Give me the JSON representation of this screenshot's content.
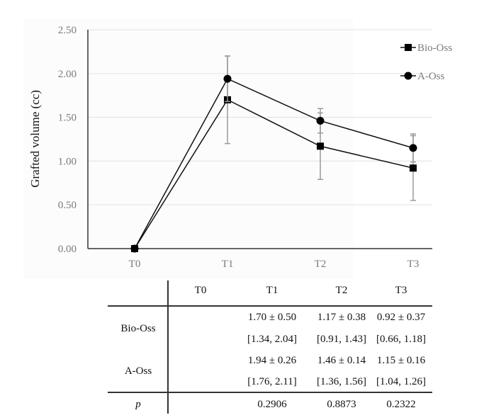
{
  "chart_data": {
    "type": "line",
    "title": "",
    "xlabel": "",
    "ylabel": "Grafted volume (cc)",
    "categories": [
      "T0",
      "T1",
      "T2",
      "T3"
    ],
    "ylim": [
      0,
      2.5
    ],
    "yticks": [
      "0.00",
      "0.50",
      "1.00",
      "1.50",
      "2.00",
      "2.50"
    ],
    "ytick_values": [
      0,
      0.5,
      1.0,
      1.5,
      2.0,
      2.5
    ],
    "grid": true,
    "legend_position": "top-right",
    "series": [
      {
        "name": "Bio-Oss",
        "marker": "square",
        "values": [
          0,
          1.7,
          1.17,
          0.92
        ],
        "errors": [
          0,
          0.5,
          0.38,
          0.37
        ]
      },
      {
        "name": "A-Oss",
        "marker": "circle",
        "values": [
          0,
          1.94,
          1.46,
          1.15
        ],
        "errors": [
          0,
          0.26,
          0.14,
          0.16
        ]
      }
    ],
    "colors": {
      "line": "#111111",
      "errorbar": "#9a9a9a",
      "grid": "#e6e6e6",
      "axis": "#333333"
    }
  },
  "table": {
    "columns": [
      "",
      "T0",
      "T1",
      "T2",
      "T3"
    ],
    "groups": [
      {
        "label": "Bio-Oss",
        "rows": [
          [
            "",
            "1.70 ± 0.50",
            "1.17 ± 0.38",
            "0.92 ± 0.37"
          ],
          [
            "",
            "[1.34, 2.04]",
            "[0.91, 1.43]",
            "[0.66, 1.18]"
          ]
        ]
      },
      {
        "label": "A-Oss",
        "rows": [
          [
            "",
            "1.94 ± 0.26",
            "1.46 ± 0.14",
            "1.15 ± 0.16"
          ],
          [
            "",
            "[1.76, 2.11]",
            "[1.36, 1.56]",
            "[1.04, 1.26]"
          ]
        ]
      }
    ],
    "p_row": {
      "label": "p",
      "values": [
        "",
        "0.2906",
        "0.8873",
        "0.2322"
      ]
    }
  }
}
